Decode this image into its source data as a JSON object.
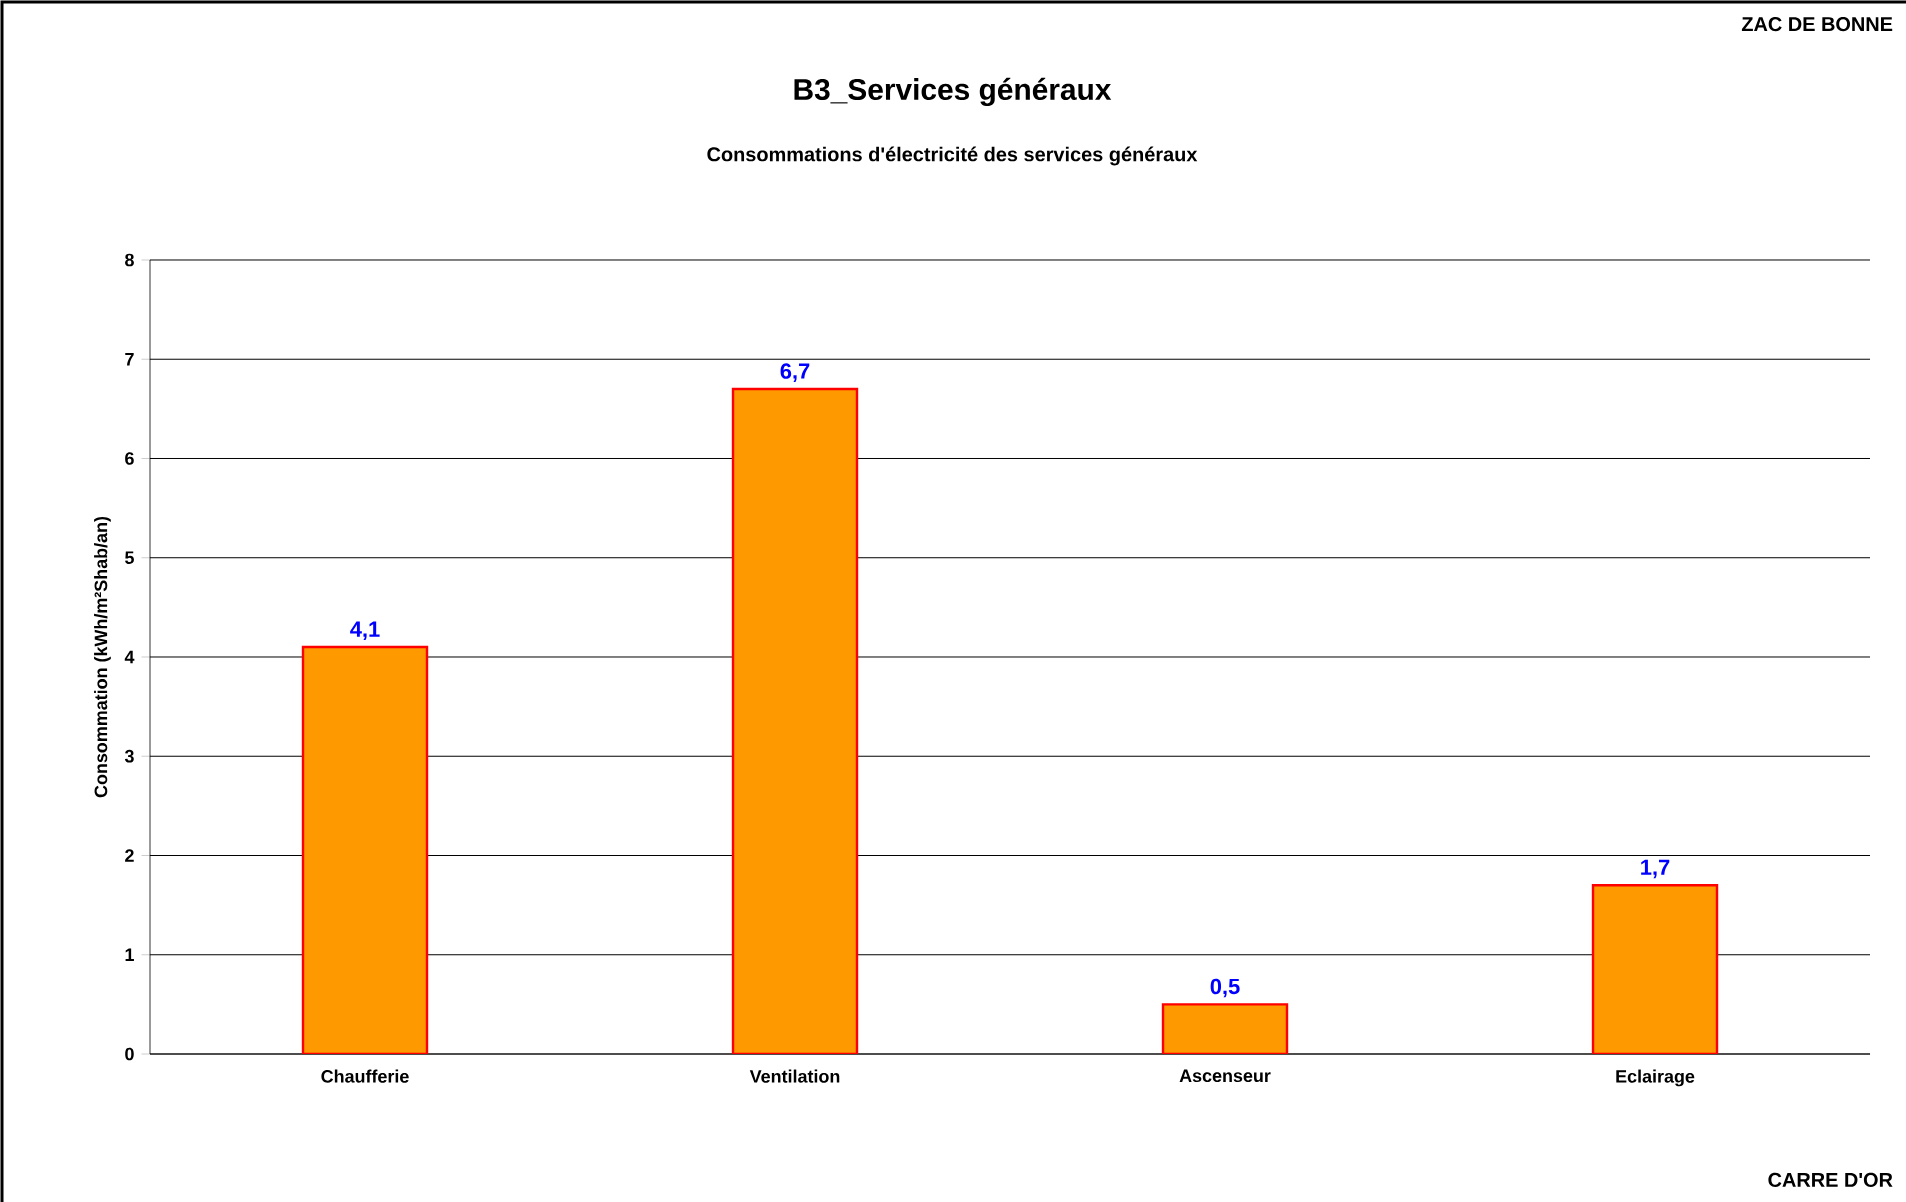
{
  "chart_data": {
    "type": "bar",
    "title": "B3_Services généraux",
    "subtitle": "Consommations d'électricité des services généraux",
    "ylabel": "Consommation (kWh/m²Shab/an)",
    "categories": [
      "Chaufferie",
      "Ventilation",
      "Ascenseur",
      "Eclairage"
    ],
    "values": [
      4.1,
      6.7,
      0.5,
      1.7
    ],
    "value_labels": [
      "4,1",
      "6,7",
      "0,5",
      "1,7"
    ],
    "color": "#ff9900",
    "ylim": [
      0,
      8
    ],
    "yticks": [
      0,
      1,
      2,
      3,
      4,
      5,
      6,
      7,
      8
    ],
    "grid": "y",
    "annotations": [
      "ZAC DE BONNE",
      "CARRE D'OR"
    ]
  }
}
